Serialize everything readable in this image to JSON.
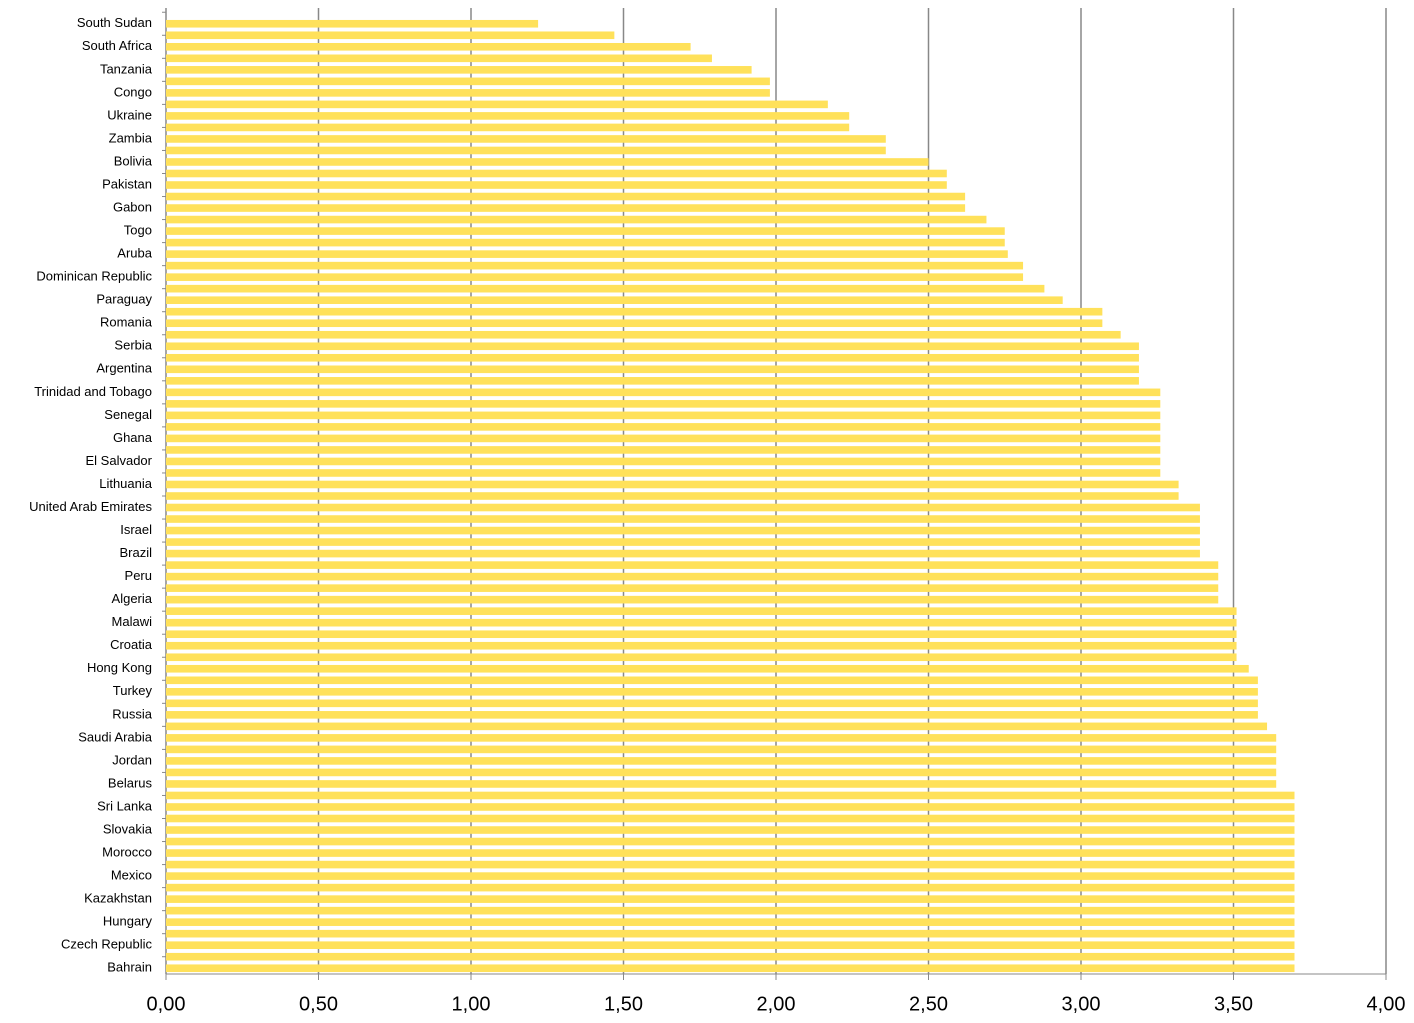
{
  "chart_data": {
    "type": "barh",
    "categories": [
      "South Sudan",
      null,
      "South Africa",
      null,
      "Tanzania",
      null,
      "Congo",
      null,
      "Ukraine",
      null,
      "Zambia",
      null,
      "Bolivia",
      null,
      "Pakistan",
      null,
      "Gabon",
      null,
      "Togo",
      null,
      "Aruba",
      null,
      "Dominican Republic",
      null,
      "Paraguay",
      null,
      "Romania",
      null,
      "Serbia",
      null,
      "Argentina",
      null,
      "Trinidad and Tobago",
      null,
      "Senegal",
      null,
      "Ghana",
      null,
      "El Salvador",
      null,
      "Lithuania",
      null,
      "United Arab Emirates",
      null,
      "Israel",
      null,
      "Brazil",
      null,
      "Peru",
      null,
      "Algeria",
      null,
      "Malawi",
      null,
      "Croatia",
      null,
      "Hong Kong",
      null,
      "Turkey",
      null,
      "Russia",
      null,
      "Saudi Arabia",
      null,
      "Jordan",
      null,
      "Belarus",
      null,
      "Sri Lanka",
      null,
      "Slovakia",
      null,
      "Morocco",
      null,
      "Mexico",
      null,
      "Kazakhstan",
      null,
      "Hungary",
      null,
      "Czech Republic",
      null,
      "Bahrain"
    ],
    "values": [
      1.22,
      1.47,
      1.72,
      1.79,
      1.92,
      1.98,
      1.98,
      2.17,
      2.24,
      2.24,
      2.36,
      2.36,
      2.5,
      2.56,
      2.56,
      2.62,
      2.62,
      2.69,
      2.75,
      2.75,
      2.76,
      2.81,
      2.81,
      2.88,
      2.94,
      3.07,
      3.07,
      3.13,
      3.19,
      3.19,
      3.19,
      3.19,
      3.26,
      3.26,
      3.26,
      3.26,
      3.26,
      3.26,
      3.26,
      3.26,
      3.32,
      3.32,
      3.39,
      3.39,
      3.39,
      3.39,
      3.39,
      3.45,
      3.45,
      3.45,
      3.45,
      3.51,
      3.51,
      3.51,
      3.51,
      3.51,
      3.55,
      3.58,
      3.58,
      3.58,
      3.58,
      3.61,
      3.64,
      3.64,
      3.64,
      3.64,
      3.64,
      3.7,
      3.7,
      3.7,
      3.7,
      3.7,
      3.7,
      3.7,
      3.7,
      3.7,
      3.7,
      3.7,
      3.7,
      3.7,
      3.7,
      3.7,
      3.7
    ],
    "color": "#ffe15a",
    "xlim": [
      0,
      4
    ],
    "xticks": [
      {
        "value": 0,
        "label": "0,00"
      },
      {
        "value": 0.5,
        "label": "0,50"
      },
      {
        "value": 1,
        "label": "1,00"
      },
      {
        "value": 1.5,
        "label": "1,50"
      },
      {
        "value": 2,
        "label": "2,00"
      },
      {
        "value": 2.5,
        "label": "2,50"
      },
      {
        "value": 3,
        "label": "3,00"
      },
      {
        "value": 3.5,
        "label": "3,50"
      },
      {
        "value": 4,
        "label": "4,00"
      }
    ],
    "grid": true
  }
}
